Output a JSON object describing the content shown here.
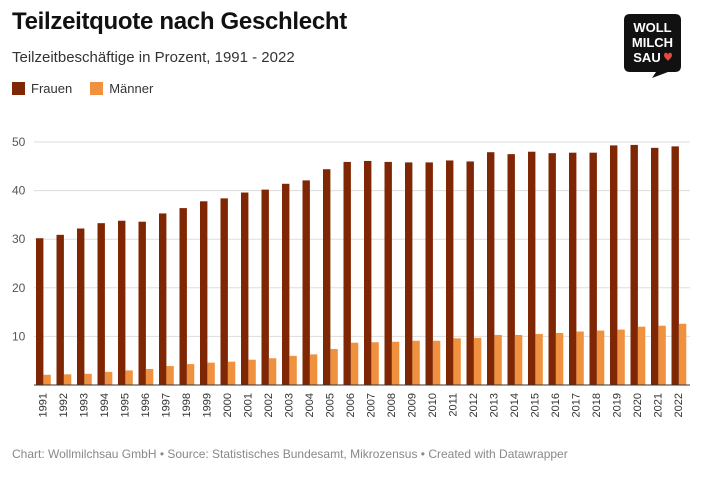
{
  "title": "Teilzeitquote nach Geschlecht",
  "subtitle": "Teilzeitbeschäftige in Prozent, 1991 - 2022",
  "logo": {
    "line1": "WOLL",
    "line2": "MILCH",
    "line3": "SAU"
  },
  "colors": {
    "frauen": "#7f2704",
    "maenner": "#f0913f",
    "grid": "#dddddd",
    "axis": "#333333"
  },
  "footer": "Chart: Wollmilchsau GmbH • Source: Statistisches Bundesamt, Mikrozensus • Created with Datawrapper",
  "chart_data": {
    "type": "bar",
    "categories": [
      "1991",
      "1992",
      "1993",
      "1994",
      "1995",
      "1996",
      "1997",
      "1998",
      "1999",
      "2000",
      "2001",
      "2002",
      "2003",
      "2004",
      "2005",
      "2006",
      "2007",
      "2008",
      "2009",
      "2010",
      "2011",
      "2012",
      "2013",
      "2014",
      "2015",
      "2016",
      "2017",
      "2018",
      "2019",
      "2020",
      "2021",
      "2022"
    ],
    "series": [
      {
        "name": "Frauen",
        "values": [
          30.2,
          30.9,
          32.2,
          33.3,
          33.8,
          33.6,
          35.3,
          36.4,
          37.8,
          38.4,
          39.6,
          40.2,
          41.4,
          42.1,
          44.4,
          45.9,
          46.1,
          45.9,
          45.8,
          45.8,
          46.2,
          46.0,
          47.9,
          47.5,
          48.0,
          47.7,
          47.8,
          47.8,
          49.3,
          49.4,
          48.8,
          49.1
        ]
      },
      {
        "name": "Männer",
        "values": [
          2.1,
          2.2,
          2.3,
          2.7,
          3.0,
          3.3,
          3.9,
          4.3,
          4.6,
          4.8,
          5.2,
          5.5,
          6.0,
          6.3,
          7.4,
          8.7,
          8.8,
          8.9,
          9.1,
          9.1,
          9.6,
          9.7,
          10.3,
          10.3,
          10.5,
          10.7,
          11.0,
          11.2,
          11.4,
          12.0,
          12.2,
          12.6
        ]
      }
    ],
    "yticks": [
      10,
      20,
      30,
      40,
      50
    ],
    "ylim": [
      0,
      50
    ]
  }
}
